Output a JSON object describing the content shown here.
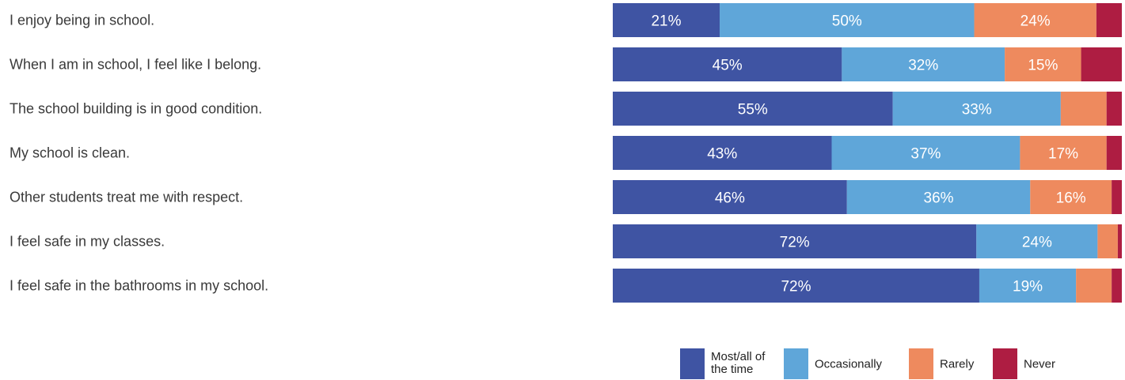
{
  "chart_data": {
    "type": "bar",
    "orientation": "horizontal",
    "stacked": true,
    "categories": [
      "I enjoy being in school.",
      "When I am in school, I feel like I belong.",
      "The school building is in good condition.",
      "My school is clean.",
      "Other students treat me with respect.",
      "I feel safe in my classes.",
      "I feel safe in the bathrooms in my school."
    ],
    "series": [
      {
        "name": "Most/all of the time",
        "color": "#3f54a3",
        "values": [
          21,
          45,
          55,
          43,
          46,
          72,
          72
        ]
      },
      {
        "name": "Occasionally",
        "color": "#5fa6d9",
        "values": [
          50,
          32,
          33,
          37,
          36,
          24,
          19
        ]
      },
      {
        "name": "Rarely",
        "color": "#ee8a5e",
        "values": [
          24,
          15,
          9,
          17,
          16,
          4,
          7
        ]
      },
      {
        "name": "Never",
        "color": "#ae1d42",
        "values": [
          5,
          8,
          3,
          3,
          2,
          0.8,
          2
        ]
      }
    ],
    "data_labels": [
      [
        "21%",
        "50%",
        "24%",
        ""
      ],
      [
        "45%",
        "32%",
        "15%",
        ""
      ],
      [
        "55%",
        "33%",
        "",
        ""
      ],
      [
        "43%",
        "37%",
        "17%",
        ""
      ],
      [
        "46%",
        "36%",
        "16%",
        ""
      ],
      [
        "72%",
        "24%",
        "",
        ""
      ],
      [
        "72%",
        "19%",
        "",
        ""
      ]
    ],
    "xlim": [
      0,
      100
    ],
    "legend": {
      "position": "bottom-right",
      "entries": [
        {
          "lines": [
            "Most/all of",
            "the time"
          ],
          "color": "#3f54a3"
        },
        {
          "lines": [
            "Occasionally"
          ],
          "color": "#5fa6d9"
        },
        {
          "lines": [
            "Rarely"
          ],
          "color": "#ee8a5e"
        },
        {
          "lines": [
            "Never"
          ],
          "color": "#ae1d42"
        }
      ]
    }
  }
}
